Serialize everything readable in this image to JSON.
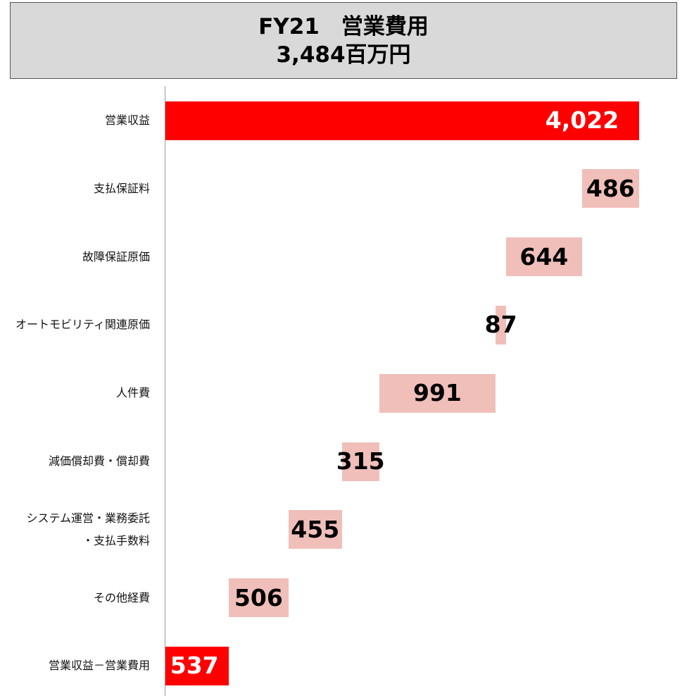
{
  "chart_data": {
    "type": "waterfall",
    "title": "FY21　営業費用",
    "subtitle": "3,484百万円",
    "categories": [
      "営業収益",
      "支払保証料",
      "故障保証原価",
      "オートモビリティ関連原価",
      "人件費",
      "減価償却費・償却費",
      "システム運営・業務委託\n・支払手数料",
      "その他経費",
      "営業収益－営業費用"
    ],
    "values": [
      4022,
      486,
      644,
      87,
      991,
      315,
      455,
      506,
      537
    ],
    "value_labels": [
      "4,022",
      "486",
      "644",
      "87",
      "991",
      "315",
      "455",
      "506",
      "537"
    ],
    "measures": [
      "total",
      "decrease",
      "decrease",
      "decrease",
      "decrease",
      "decrease",
      "decrease",
      "decrease",
      "total"
    ],
    "colors": {
      "total": "#ff0000",
      "decrease": "#f0bfba"
    }
  }
}
